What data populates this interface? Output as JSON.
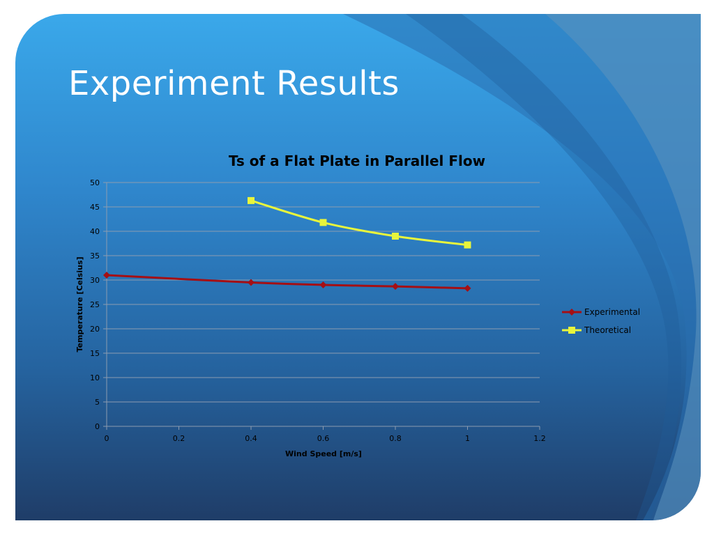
{
  "slide": {
    "title": "Experiment Results"
  },
  "colors": {
    "experimental": "#a50f14",
    "theoretical": "#e8f53c",
    "gridline": "#8c9cb0"
  },
  "chart_data": {
    "type": "scatter",
    "title": "Ts of a Flat Plate in Parallel Flow",
    "xlabel": "Wind Speed [m/s]",
    "ylabel": "Temperature [Celsius]",
    "xlim": [
      0,
      1.2
    ],
    "ylim": [
      0,
      50
    ],
    "x_ticks": [
      "0",
      "0.2",
      "0.4",
      "0.6",
      "0.8",
      "1",
      "1.2"
    ],
    "y_ticks": [
      "0",
      "5",
      "10",
      "15",
      "20",
      "25",
      "30",
      "35",
      "40",
      "45",
      "50"
    ],
    "grid": "horizontal",
    "legend_position": "right",
    "series": [
      {
        "name": "Experimental",
        "marker": "diamond",
        "color": "#a50f14",
        "x": [
          0,
          0.4,
          0.6,
          0.8,
          1
        ],
        "y": [
          31.0,
          29.5,
          29.0,
          28.7,
          28.3
        ]
      },
      {
        "name": "Theoretical",
        "marker": "square",
        "color": "#e8f53c",
        "x": [
          0.4,
          0.6,
          0.8,
          1
        ],
        "y": [
          46.3,
          41.8,
          39.0,
          37.2
        ]
      }
    ]
  }
}
